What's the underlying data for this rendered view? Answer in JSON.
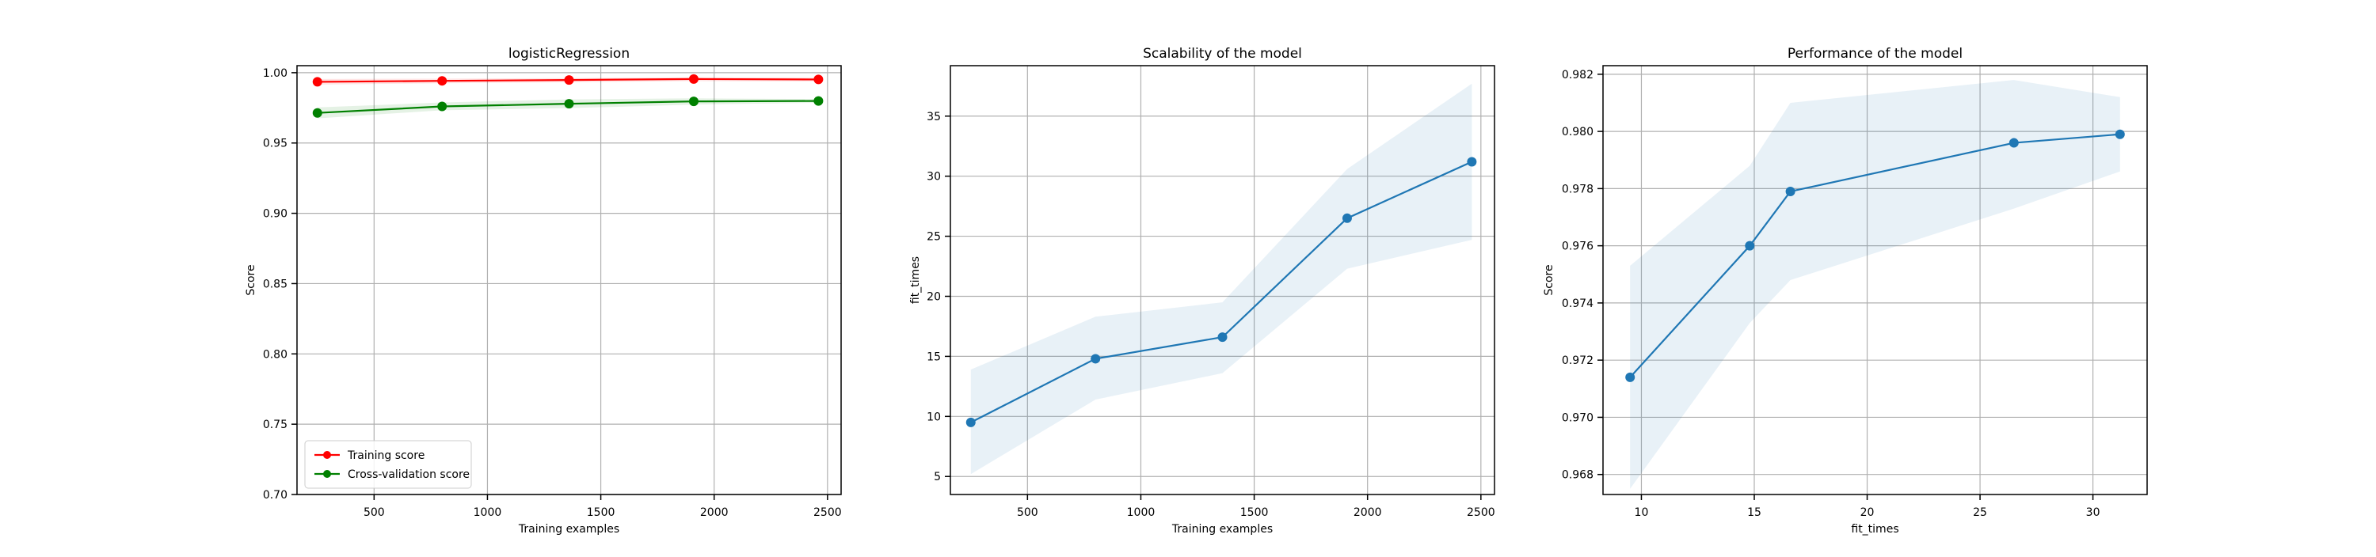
{
  "chart_data": [
    {
      "type": "line",
      "title": "logisticRegression",
      "xlabel": "Training examples",
      "ylabel": "Score",
      "xlim": [
        160,
        2560
      ],
      "ylim": [
        0.7,
        1.005
      ],
      "grid": true,
      "xticks": [
        500,
        1000,
        1500,
        2000,
        2500
      ],
      "yticks": [
        0.7,
        0.75,
        0.8,
        0.85,
        0.9,
        0.95,
        1.0
      ],
      "ytick_decimals": 2,
      "x": [
        250,
        800,
        1360,
        1910,
        2460
      ],
      "series": [
        {
          "name": "Training score",
          "color": "#ff0000",
          "values": [
            0.9935,
            0.9942,
            0.9948,
            0.9955,
            0.9952
          ],
          "band_lower": [
            0.9915,
            0.9925,
            0.9932,
            0.994,
            0.9938
          ],
          "band_upper": [
            0.9955,
            0.9958,
            0.9962,
            0.9968,
            0.9966
          ]
        },
        {
          "name": "Cross-validation score",
          "color": "#008000",
          "values": [
            0.9714,
            0.976,
            0.9779,
            0.9796,
            0.9799
          ],
          "band_lower": [
            0.9675,
            0.9733,
            0.9748,
            0.9773,
            0.9786
          ],
          "band_upper": [
            0.9753,
            0.9788,
            0.981,
            0.9818,
            0.9812
          ]
        }
      ],
      "legend_position": "lower-left"
    },
    {
      "type": "line",
      "title": "Scalability of the model",
      "xlabel": "Training examples",
      "ylabel": "fit_times",
      "xlim": [
        160,
        2560
      ],
      "ylim": [
        3.5,
        39.2
      ],
      "grid": true,
      "xticks": [
        500,
        1000,
        1500,
        2000,
        2500
      ],
      "yticks": [
        5,
        10,
        15,
        20,
        25,
        30,
        35
      ],
      "ytick_decimals": 0,
      "x": [
        250,
        800,
        1360,
        1910,
        2460
      ],
      "series": [
        {
          "name": "",
          "color": "#1f77b4",
          "values": [
            9.5,
            14.8,
            16.6,
            26.5,
            31.2
          ],
          "band_lower": [
            5.2,
            11.4,
            13.6,
            22.3,
            24.7
          ],
          "band_upper": [
            13.9,
            18.3,
            19.5,
            30.6,
            37.7
          ]
        }
      ]
    },
    {
      "type": "line",
      "title": "Performance of the model",
      "xlabel": "fit_times",
      "ylabel": "Score",
      "xlim": [
        8.3,
        32.4
      ],
      "ylim": [
        0.9673,
        0.9823
      ],
      "grid": true,
      "xticks": [
        10,
        15,
        20,
        25,
        30
      ],
      "yticks": [
        0.968,
        0.97,
        0.972,
        0.974,
        0.976,
        0.978,
        0.98,
        0.982
      ],
      "ytick_decimals": 3,
      "x": [
        9.5,
        14.8,
        16.6,
        26.5,
        31.2
      ],
      "series": [
        {
          "name": "",
          "color": "#1f77b4",
          "values": [
            0.9714,
            0.976,
            0.9779,
            0.9796,
            0.9799
          ],
          "band_lower": [
            0.9675,
            0.9733,
            0.9748,
            0.9773,
            0.9786
          ],
          "band_upper": [
            0.9753,
            0.9788,
            0.981,
            0.9818,
            0.9812
          ]
        }
      ]
    }
  ]
}
